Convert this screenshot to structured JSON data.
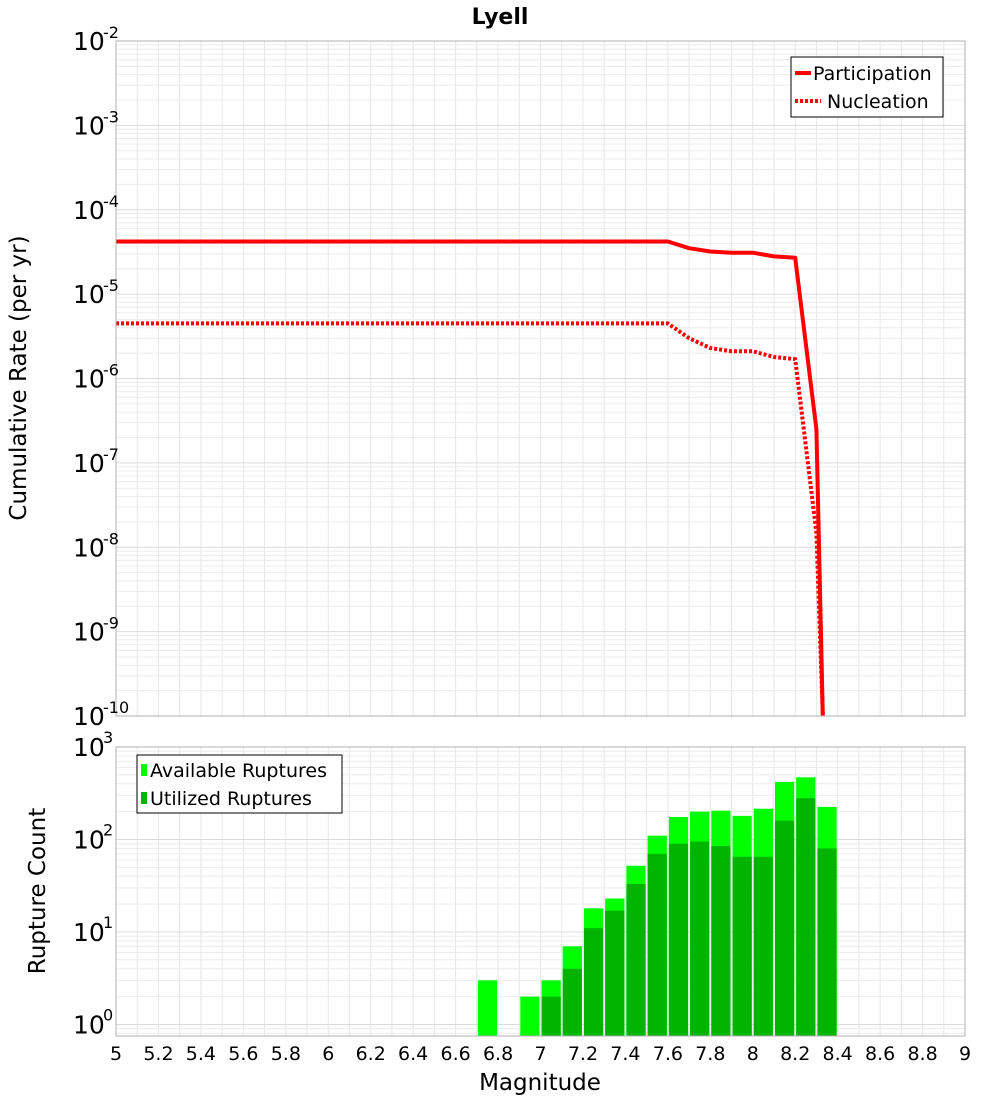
{
  "chart_data": [
    {
      "type": "line",
      "title": "Lyell",
      "xlabel": "",
      "ylabel": "Cumulative Rate (per yr)",
      "yscale": "log",
      "xlim": [
        5,
        9
      ],
      "ylim": [
        1e-10,
        0.01
      ],
      "y_tick_exponents": [
        "-10",
        "-9",
        "-8",
        "-7",
        "-6",
        "-5",
        "-4",
        "-3",
        "-2"
      ],
      "legend": "top-right",
      "grid": true,
      "series": [
        {
          "name": "Participation",
          "style": "solid",
          "color": "#ff0000",
          "x": [
            5.0,
            5.5,
            6.0,
            6.5,
            7.0,
            7.5,
            7.6,
            7.7,
            7.8,
            7.9,
            8.0,
            8.1,
            8.2,
            8.3,
            8.33
          ],
          "y": [
            4.2e-05,
            4.2e-05,
            4.2e-05,
            4.2e-05,
            4.2e-05,
            4.2e-05,
            4.2e-05,
            3.5e-05,
            3.2e-05,
            3.1e-05,
            3.1e-05,
            2.8e-05,
            2.7e-05,
            2.5e-07,
            1e-10
          ]
        },
        {
          "name": "Nucleation",
          "style": "dotted",
          "color": "#ff0000",
          "x": [
            5.0,
            5.5,
            6.0,
            6.5,
            7.0,
            7.5,
            7.6,
            7.7,
            7.8,
            7.9,
            8.0,
            8.1,
            8.2,
            8.3,
            8.33
          ],
          "y": [
            4.5e-06,
            4.5e-06,
            4.5e-06,
            4.5e-06,
            4.5e-06,
            4.5e-06,
            4.5e-06,
            3e-06,
            2.3e-06,
            2.1e-06,
            2.1e-06,
            1.8e-06,
            1.7e-06,
            1.5e-08,
            1e-10
          ]
        }
      ]
    },
    {
      "type": "bar",
      "title": "",
      "xlabel": "Magnitude",
      "ylabel": "Rupture Count",
      "yscale": "log",
      "xlim": [
        5,
        9
      ],
      "ylim": [
        0.75,
        1000
      ],
      "y_tick_exponents": [
        "0",
        "1",
        "2",
        "3"
      ],
      "x_ticks": [
        "5",
        "5.2",
        "5.4",
        "5.6",
        "5.8",
        "6",
        "6.2",
        "6.4",
        "6.6",
        "6.8",
        "7",
        "7.2",
        "7.4",
        "7.6",
        "7.8",
        "8",
        "8.2",
        "8.4",
        "8.6",
        "8.8",
        "9"
      ],
      "legend": "top-left",
      "grid": true,
      "bin_width": 0.1,
      "series": [
        {
          "name": "Available Ruptures",
          "color": "#00ff00",
          "x": [
            6.75,
            6.95,
            7.05,
            7.15,
            7.25,
            7.35,
            7.45,
            7.55,
            7.65,
            7.75,
            7.85,
            7.95,
            8.05,
            8.15,
            8.25,
            8.35
          ],
          "values": [
            3,
            2,
            3,
            7,
            18,
            23,
            52,
            110,
            175,
            200,
            205,
            180,
            215,
            420,
            470,
            225
          ]
        },
        {
          "name": "Utilized Ruptures",
          "color": "#00b400",
          "x": [
            6.75,
            6.95,
            7.05,
            7.15,
            7.25,
            7.35,
            7.45,
            7.55,
            7.65,
            7.75,
            7.85,
            7.95,
            8.05,
            8.15,
            8.25,
            8.35
          ],
          "values": [
            0,
            0,
            2,
            4,
            11,
            17,
            33,
            70,
            90,
            95,
            85,
            65,
            65,
            160,
            280,
            80
          ]
        }
      ]
    }
  ]
}
